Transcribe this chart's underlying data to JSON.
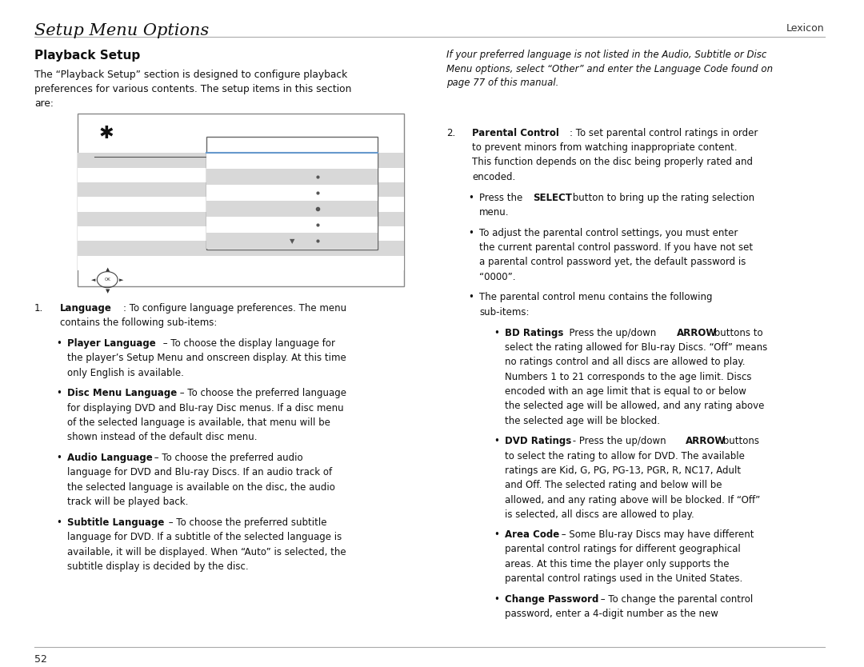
{
  "bg_color": "#ffffff",
  "header_title": "Setup Menu Options",
  "header_right": "Lexicon",
  "header_line_color": "#aaaaaa",
  "footer_line_color": "#aaaaaa",
  "footer_text": "52",
  "section_title": "Playback Setup",
  "intro_text": "The “Playback Setup” section is designed to configure playback\npreferences for various contents. The setup items in this section\nare:",
  "right_italic_text": "If your preferred language is not listed in the Audio, Subtitle or Disc\nMenu options, select “Other” and enter the Language Code found on\npage 77 of this manual."
}
